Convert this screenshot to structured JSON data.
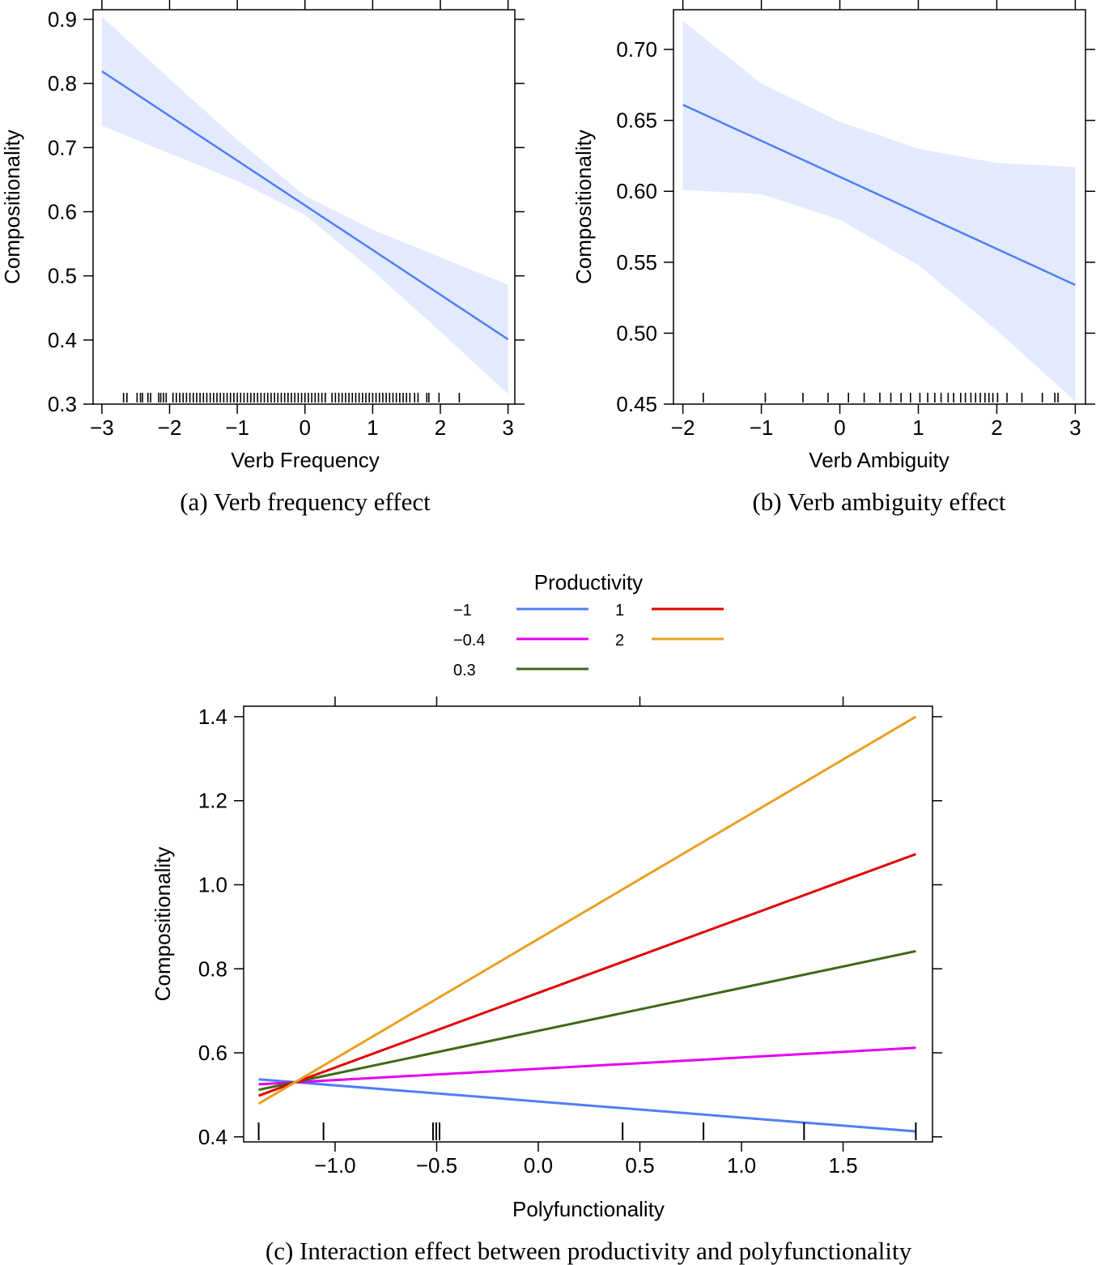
{
  "chart_data": [
    {
      "type": "line",
      "caption": "(a) Verb frequency effect",
      "xlabel": "Verb Frequency",
      "ylabel": "Compositionality",
      "xlim": [
        -3.13,
        3.1
      ],
      "ylim": [
        0.3,
        0.915
      ],
      "xticks": [
        "−3",
        "−2",
        "−1",
        "0",
        "1",
        "2",
        "3"
      ],
      "xtick_values": [
        -3,
        -2,
        -1,
        0,
        1,
        2,
        3
      ],
      "yticks": [
        "0.3",
        "0.4",
        "0.5",
        "0.6",
        "0.7",
        "0.8",
        "0.9"
      ],
      "ytick_values": [
        0.3,
        0.4,
        0.5,
        0.6,
        0.7,
        0.8,
        0.9
      ],
      "line": {
        "color": "#4f7ff7",
        "x": [
          -3,
          3
        ],
        "y": [
          0.819,
          0.401
        ]
      },
      "band": {
        "color": "#e3eafd",
        "x": [
          -3,
          -2,
          -1,
          0,
          1,
          2,
          3
        ],
        "upper": [
          0.904,
          0.807,
          0.712,
          0.625,
          0.572,
          0.529,
          0.486
        ],
        "lower": [
          0.734,
          0.691,
          0.648,
          0.595,
          0.508,
          0.413,
          0.316
        ]
      },
      "rug": [
        -2.68,
        -2.63,
        -2.48,
        -2.43,
        -2.4,
        -2.32,
        -2.28,
        -2.16,
        -2.13,
        -2.09,
        -2.05,
        -1.95,
        -1.9,
        -1.85,
        -1.8,
        -1.75,
        -1.7,
        -1.65,
        -1.6,
        -1.55,
        -1.5,
        -1.45,
        -1.4,
        -1.35,
        -1.3,
        -1.25,
        -1.2,
        -1.15,
        -1.1,
        -1.05,
        -1.0,
        -0.95,
        -0.9,
        -0.85,
        -0.8,
        -0.75,
        -0.7,
        -0.65,
        -0.6,
        -0.55,
        -0.5,
        -0.45,
        -0.4,
        -0.35,
        -0.3,
        -0.25,
        -0.2,
        -0.15,
        -0.1,
        -0.05,
        0.0,
        0.05,
        0.1,
        0.15,
        0.2,
        0.25,
        0.3,
        0.4,
        0.45,
        0.5,
        0.55,
        0.6,
        0.65,
        0.7,
        0.75,
        0.8,
        0.85,
        0.9,
        0.95,
        1.0,
        1.05,
        1.1,
        1.15,
        1.2,
        1.25,
        1.3,
        1.35,
        1.4,
        1.45,
        1.5,
        1.55,
        1.62,
        1.67,
        1.8,
        1.83,
        1.98,
        2.28
      ]
    },
    {
      "type": "line",
      "caption": "(b) Verb ambiguity effect",
      "xlabel": "Verb Ambiguity",
      "ylabel": "Compositionality",
      "xlim": [
        -2.12,
        3.13
      ],
      "ylim": [
        0.45,
        0.728
      ],
      "xticks": [
        "−2",
        "−1",
        "0",
        "1",
        "2",
        "3"
      ],
      "xtick_values": [
        -2,
        -1,
        0,
        1,
        2,
        3
      ],
      "yticks": [
        "0.45",
        "0.50",
        "0.55",
        "0.60",
        "0.65",
        "0.70"
      ],
      "ytick_values": [
        0.45,
        0.5,
        0.55,
        0.6,
        0.65,
        0.7
      ],
      "line": {
        "color": "#4f7ff7",
        "x": [
          -2,
          3
        ],
        "y": [
          0.661,
          0.534
        ]
      },
      "band": {
        "color": "#e3eafd",
        "x": [
          -2,
          -1,
          0,
          1,
          2,
          3
        ],
        "upper": [
          0.72,
          0.676,
          0.649,
          0.63,
          0.62,
          0.617
        ],
        "lower": [
          0.601,
          0.598,
          0.58,
          0.548,
          0.502,
          0.452
        ]
      },
      "rug": [
        -1.74,
        -0.95,
        -0.47,
        -0.15,
        0.11,
        0.31,
        0.51,
        0.65,
        0.78,
        0.9,
        1.02,
        1.12,
        1.21,
        1.29,
        1.38,
        1.45,
        1.54,
        1.6,
        1.67,
        1.73,
        1.79,
        1.85,
        1.9,
        1.95,
        2.01,
        2.13,
        2.32,
        2.58,
        2.74,
        2.78
      ]
    },
    {
      "type": "line",
      "caption": "(c) Interaction effect between productivity and polyfunctionality",
      "xlabel": "Polyfunctionality",
      "ylabel": "Compositionality",
      "xlim": [
        -1.45,
        1.94
      ],
      "ylim": [
        0.388,
        1.425
      ],
      "xticks": [
        "−1.0",
        "−0.5",
        "0.0",
        "0.5",
        "1.0",
        "1.5"
      ],
      "xtick_values": [
        -1,
        -0.5,
        0,
        0.5,
        1,
        1.5
      ],
      "yticks": [
        "0.4",
        "0.6",
        "0.8",
        "1.0",
        "1.2",
        "1.4"
      ],
      "ytick_values": [
        0.4,
        0.6,
        0.8,
        1.0,
        1.2,
        1.4
      ],
      "legend": {
        "title": "Productivity",
        "placement": "top"
      },
      "series": [
        {
          "name": "−1",
          "color": "#4f7ff7",
          "x": [
            -1.376,
            1.858
          ],
          "y": [
            0.537,
            0.413
          ]
        },
        {
          "name": "−0.4",
          "color": "#e600f0",
          "x": [
            -1.376,
            1.858
          ],
          "y": [
            0.525,
            0.612
          ]
        },
        {
          "name": "0.3",
          "color": "#3c6a17",
          "x": [
            -1.376,
            1.858
          ],
          "y": [
            0.512,
            0.842
          ]
        },
        {
          "name": "1",
          "color": "#e00000",
          "x": [
            -1.376,
            1.858
          ],
          "y": [
            0.498,
            1.073
          ]
        },
        {
          "name": "2",
          "color": "#eaa020",
          "x": [
            -1.376,
            1.858
          ],
          "y": [
            0.479,
            1.4
          ]
        }
      ],
      "rug": [
        -1.376,
        -1.057,
        -0.518,
        -0.502,
        -0.486,
        0.415,
        0.813,
        1.308,
        1.858
      ]
    }
  ]
}
